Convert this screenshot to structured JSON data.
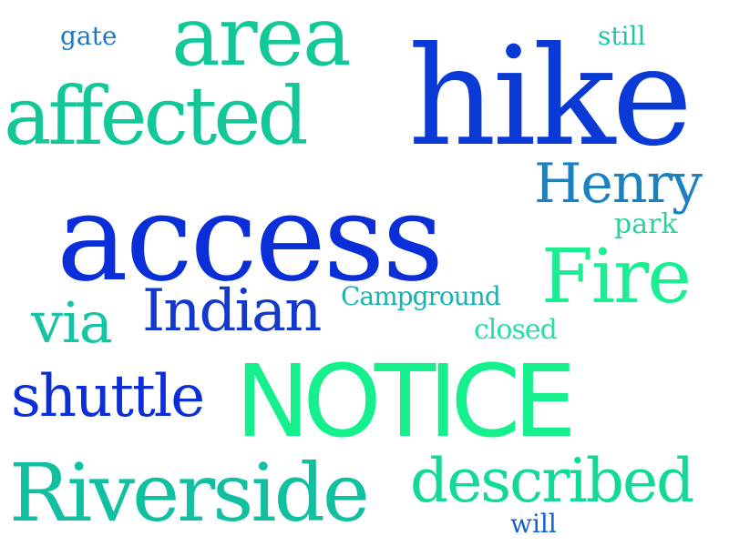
{
  "words": [
    {
      "text": "access",
      "color": "#0a2fd8"
    },
    {
      "text": "hike",
      "color": "#0a3ad6"
    },
    {
      "text": "NOTICE",
      "color": "#14f08c"
    },
    {
      "text": "area",
      "color": "#12c898"
    },
    {
      "text": "affected",
      "color": "#12c898"
    },
    {
      "text": "Riverside",
      "color": "#10c0a0"
    },
    {
      "text": "described",
      "color": "#12d898"
    },
    {
      "text": "Fire",
      "color": "#1aee92"
    },
    {
      "text": "Henry",
      "color": "#1a82c0"
    },
    {
      "text": "Indian",
      "color": "#1238cc"
    },
    {
      "text": "shuttle",
      "color": "#0c2ed6"
    },
    {
      "text": "via",
      "color": "#14c4a4"
    },
    {
      "text": "Campground",
      "color": "#16b4b0"
    },
    {
      "text": "closed",
      "color": "#26e0a0"
    },
    {
      "text": "park",
      "color": "#28d49c"
    },
    {
      "text": "gate",
      "color": "#1e78c4"
    },
    {
      "text": "still",
      "color": "#22c4a8"
    },
    {
      "text": "will",
      "color": "#1662c8"
    }
  ]
}
